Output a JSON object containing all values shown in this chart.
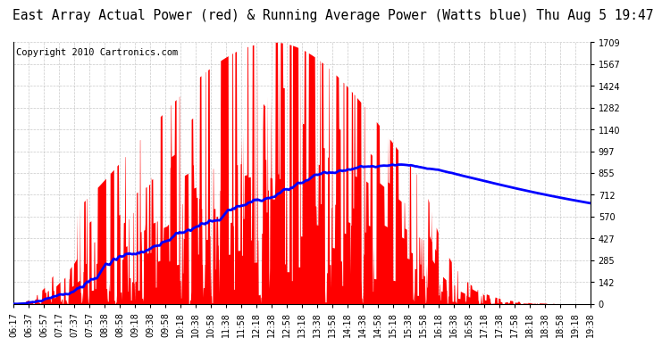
{
  "title": "East Array Actual Power (red) & Running Average Power (Watts blue) Thu Aug 5 19:47",
  "copyright": "Copyright 2010 Cartronics.com",
  "ylabel_right_ticks": [
    0.0,
    142.4,
    284.9,
    427.3,
    569.7,
    712.2,
    854.6,
    997.0,
    1139.5,
    1281.9,
    1424.3,
    1566.8,
    1709.2
  ],
  "ylim": [
    0,
    1709.2
  ],
  "x_tick_labels": [
    "06:17",
    "06:37",
    "06:57",
    "07:17",
    "07:37",
    "07:57",
    "08:38",
    "08:58",
    "09:18",
    "09:38",
    "09:58",
    "10:18",
    "10:38",
    "10:58",
    "11:38",
    "11:58",
    "12:18",
    "12:38",
    "12:58",
    "13:18",
    "13:38",
    "13:58",
    "14:18",
    "14:38",
    "14:58",
    "15:18",
    "15:38",
    "15:58",
    "16:18",
    "16:38",
    "16:58",
    "17:18",
    "17:38",
    "17:58",
    "18:18",
    "18:38",
    "18:58",
    "19:18",
    "19:38"
  ],
  "background_color": "#ffffff",
  "plot_bg_color": "#ffffff",
  "grid_color": "#bbbbbb",
  "bar_color": "#ff0000",
  "line_color": "#0000ff",
  "title_fontsize": 10.5,
  "tick_fontsize": 7,
  "copyright_fontsize": 7.5,
  "line_width": 2.0
}
